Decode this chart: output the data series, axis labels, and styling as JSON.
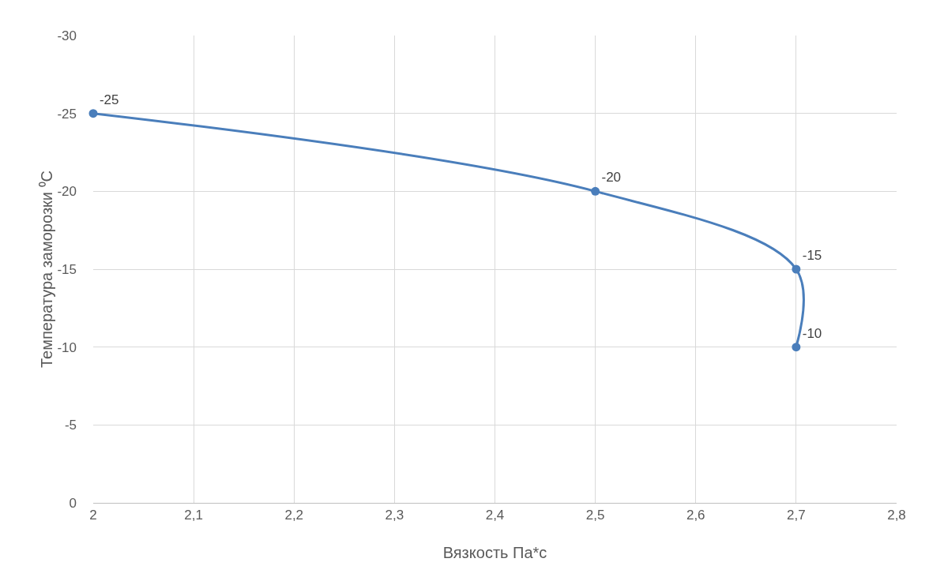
{
  "chart_data": {
    "type": "line",
    "xlabel": "Вязкость Па*с",
    "ylabel": "Температура заморозки ⁰C",
    "x": [
      2,
      2.5,
      2.7,
      2.7
    ],
    "series": [
      {
        "color": "#4a7ebb",
        "values": [
          -25,
          -20,
          -15,
          -10
        ]
      }
    ],
    "xlim": [
      2,
      2.8
    ],
    "xticks": [
      2,
      {
        "value": 2.1,
        "label": "2,1"
      },
      {
        "value": 2.2,
        "label": "2,2"
      },
      {
        "value": 2.3,
        "label": "2,3"
      },
      {
        "value": 2.4,
        "label": "2,4"
      },
      {
        "value": 2.5,
        "label": "2,5"
      },
      {
        "value": 2.6,
        "label": "2,6"
      },
      {
        "value": 2.7,
        "label": "2,7"
      },
      {
        "value": 2.8,
        "label": "2,8"
      }
    ],
    "ylim": [
      0,
      -30
    ],
    "yticks": [
      0,
      -5,
      -10,
      -15,
      -20,
      -25,
      -30
    ],
    "grid": true,
    "marker": "circle",
    "line_style": "solid",
    "data_labels": true
  }
}
